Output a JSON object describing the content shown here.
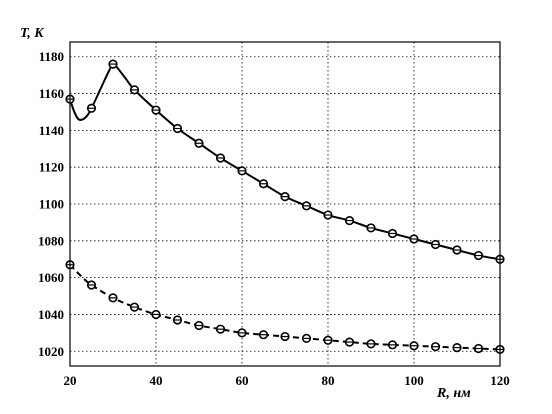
{
  "chart_data": {
    "type": "line",
    "xlabel": "R, нм",
    "ylabel": "T, K",
    "xlim": [
      20,
      120
    ],
    "ylim": [
      1012,
      1188
    ],
    "xticks": [
      20,
      40,
      60,
      80,
      100,
      120
    ],
    "yticks": [
      1020,
      1040,
      1060,
      1080,
      1100,
      1120,
      1140,
      1160,
      1180
    ],
    "grid": true,
    "series": [
      {
        "style": "solid",
        "curve": [
          [
            20,
            1157
          ],
          [
            21,
            1150
          ],
          [
            22,
            1146
          ],
          [
            23,
            1146
          ],
          [
            24,
            1148
          ],
          [
            25,
            1152
          ],
          [
            27,
            1162
          ],
          [
            29,
            1172
          ],
          [
            30,
            1176
          ],
          [
            31,
            1174
          ],
          [
            33,
            1168
          ],
          [
            35,
            1162
          ],
          [
            40,
            1151
          ],
          [
            45,
            1141
          ],
          [
            50,
            1133
          ],
          [
            55,
            1125
          ],
          [
            60,
            1118
          ],
          [
            65,
            1111
          ],
          [
            70,
            1104
          ],
          [
            75,
            1099
          ],
          [
            80,
            1094
          ],
          [
            85,
            1091
          ],
          [
            90,
            1087
          ],
          [
            95,
            1084
          ],
          [
            100,
            1081
          ],
          [
            105,
            1078
          ],
          [
            110,
            1075
          ],
          [
            115,
            1072
          ],
          [
            120,
            1070
          ]
        ],
        "points": [
          [
            20,
            1157
          ],
          [
            25,
            1152
          ],
          [
            30,
            1176
          ],
          [
            35,
            1162
          ],
          [
            40,
            1151
          ],
          [
            45,
            1141
          ],
          [
            50,
            1133
          ],
          [
            55,
            1125
          ],
          [
            60,
            1118
          ],
          [
            65,
            1111
          ],
          [
            70,
            1104
          ],
          [
            75,
            1099
          ],
          [
            80,
            1094
          ],
          [
            85,
            1091
          ],
          [
            90,
            1087
          ],
          [
            95,
            1084
          ],
          [
            100,
            1081
          ],
          [
            105,
            1078
          ],
          [
            110,
            1075
          ],
          [
            115,
            1072
          ],
          [
            120,
            1070
          ]
        ]
      },
      {
        "style": "dashed",
        "curve": [
          [
            20,
            1067
          ],
          [
            22.5,
            1061
          ],
          [
            25,
            1056
          ],
          [
            30,
            1049
          ],
          [
            35,
            1044
          ],
          [
            40,
            1040
          ],
          [
            45,
            1037
          ],
          [
            50,
            1034
          ],
          [
            55,
            1032
          ],
          [
            60,
            1030
          ],
          [
            65,
            1029
          ],
          [
            70,
            1028
          ],
          [
            75,
            1027
          ],
          [
            80,
            1026
          ],
          [
            85,
            1025
          ],
          [
            90,
            1024
          ],
          [
            95,
            1023.5
          ],
          [
            100,
            1023
          ],
          [
            105,
            1022.5
          ],
          [
            110,
            1022
          ],
          [
            115,
            1021.5
          ],
          [
            120,
            1021
          ]
        ],
        "points": [
          [
            20,
            1067
          ],
          [
            25,
            1056
          ],
          [
            30,
            1049
          ],
          [
            35,
            1044
          ],
          [
            40,
            1040
          ],
          [
            45,
            1037
          ],
          [
            50,
            1034
          ],
          [
            55,
            1032
          ],
          [
            60,
            1030
          ],
          [
            65,
            1029
          ],
          [
            70,
            1028
          ],
          [
            75,
            1027
          ],
          [
            80,
            1026
          ],
          [
            85,
            1025
          ],
          [
            90,
            1024
          ],
          [
            95,
            1023.5
          ],
          [
            100,
            1023
          ],
          [
            105,
            1022.5
          ],
          [
            110,
            1022
          ],
          [
            115,
            1021.5
          ],
          [
            120,
            1021
          ]
        ]
      }
    ]
  }
}
